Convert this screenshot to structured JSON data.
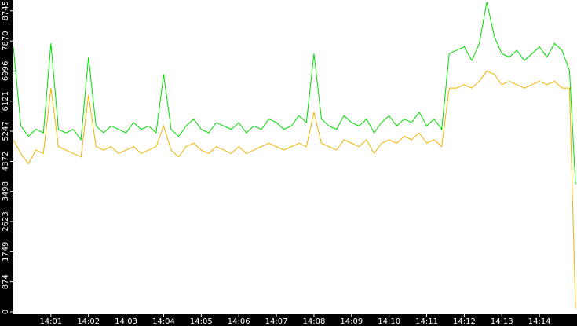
{
  "chart_data": {
    "type": "line",
    "x": [
      840,
      840.2,
      840.4,
      840.6,
      840.8,
      841,
      841.2,
      841.4,
      841.6,
      841.8,
      842,
      842.2,
      842.4,
      842.6,
      842.8,
      843,
      843.2,
      843.4,
      843.6,
      843.8,
      844,
      844.2,
      844.4,
      844.6,
      844.8,
      845,
      845.2,
      845.4,
      845.6,
      845.8,
      846,
      846.2,
      846.4,
      846.6,
      846.8,
      847,
      847.2,
      847.4,
      847.6,
      847.8,
      848,
      848.2,
      848.4,
      848.6,
      848.8,
      849,
      849.2,
      849.4,
      849.6,
      849.8,
      850,
      850.2,
      850.4,
      850.6,
      850.8,
      851,
      851.2,
      851.4,
      851.6,
      851.8,
      852,
      852.2,
      852.4,
      852.6,
      852.8,
      853,
      853.2,
      853.4,
      853.6,
      853.8,
      854,
      854.2,
      854.4,
      854.6,
      854.8,
      854.96
    ],
    "series": [
      {
        "color": "#00dd00",
        "values": [
          7700,
          5400,
          5100,
          5300,
          5200,
          7800,
          5300,
          5200,
          5300,
          5000,
          7400,
          5400,
          5200,
          5400,
          5300,
          5200,
          5500,
          5300,
          5400,
          5200,
          6900,
          5300,
          5100,
          5400,
          5600,
          5300,
          5200,
          5500,
          5400,
          5300,
          5500,
          5200,
          5400,
          5300,
          5600,
          5500,
          5300,
          5400,
          5700,
          5500,
          7500,
          5600,
          5400,
          5300,
          5700,
          5500,
          5400,
          5600,
          5200,
          5500,
          5700,
          5400,
          5600,
          5500,
          5800,
          5400,
          5600,
          5300,
          7500,
          7600,
          7700,
          7300,
          7800,
          9000,
          8000,
          7500,
          7400,
          7600,
          7300,
          7500,
          7700,
          7400,
          7800,
          7600,
          7000,
          3700
        ]
      },
      {
        "color": "#f0b400",
        "values": [
          5000,
          4600,
          4300,
          4700,
          4600,
          6500,
          4800,
          4700,
          4600,
          4500,
          6300,
          4800,
          4700,
          4800,
          4600,
          4700,
          4800,
          4600,
          4700,
          4800,
          5400,
          4700,
          4500,
          4800,
          4900,
          4700,
          4600,
          4800,
          4700,
          4600,
          4800,
          4600,
          4700,
          4800,
          4900,
          4800,
          4700,
          4800,
          4900,
          4800,
          5800,
          4900,
          4800,
          4700,
          5000,
          4900,
          4800,
          5000,
          4600,
          4900,
          5000,
          4900,
          5100,
          5000,
          5200,
          4900,
          5000,
          4800,
          6500,
          6500,
          6600,
          6500,
          6700,
          7000,
          6900,
          6600,
          6700,
          6600,
          6500,
          6600,
          6700,
          6600,
          6700,
          6500,
          6500,
          100
        ]
      }
    ],
    "xlim": [
      840,
      855
    ],
    "xticks": [
      {
        "value": 841,
        "label": "14:01"
      },
      {
        "value": 842,
        "label": "14:02"
      },
      {
        "value": 843,
        "label": "14:03"
      },
      {
        "value": 844,
        "label": "14:04"
      },
      {
        "value": 845,
        "label": "14:05"
      },
      {
        "value": 846,
        "label": "14:06"
      },
      {
        "value": 847,
        "label": "14:07"
      },
      {
        "value": 848,
        "label": "14:08"
      },
      {
        "value": 849,
        "label": "14:09"
      },
      {
        "value": 850,
        "label": "14:10"
      },
      {
        "value": 851,
        "label": "14:11"
      },
      {
        "value": 852,
        "label": "14:12"
      },
      {
        "value": 853,
        "label": "14:13"
      },
      {
        "value": 854,
        "label": "14:14"
      }
    ],
    "ylim": [
      -70,
      9060
    ],
    "yticks": [
      0,
      874,
      1749,
      2623,
      3498,
      4372,
      5247,
      6121,
      6996,
      7870,
      8745
    ]
  }
}
